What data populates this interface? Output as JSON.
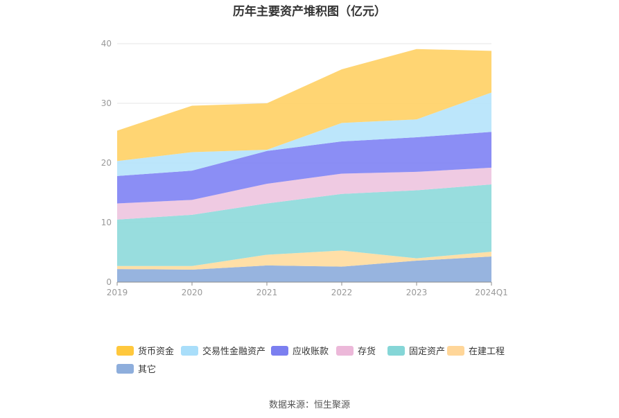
{
  "title": "历年主要资产堆积图（亿元）",
  "source": "数据来源：恒生聚源",
  "chart_data": {
    "type": "area",
    "stacked": true,
    "categories": [
      "2019",
      "2020",
      "2021",
      "2022",
      "2023",
      "2024Q1"
    ],
    "ylim": [
      0,
      40
    ],
    "yticks": [
      "0",
      "10",
      "20",
      "30",
      "40"
    ],
    "grid": true,
    "legend_position": "bottom",
    "series": [
      {
        "name": "其它",
        "color": "#8eaedc",
        "values": [
          2.2,
          2.1,
          2.8,
          2.6,
          3.6,
          4.3
        ]
      },
      {
        "name": "在建工程",
        "color": "#ffdca0",
        "values": [
          0.5,
          0.6,
          1.8,
          2.7,
          0.4,
          0.8
        ]
      },
      {
        "name": "固定资产",
        "color": "#8fdadb",
        "values": [
          7.8,
          8.6,
          8.6,
          9.5,
          11.4,
          11.3
        ]
      },
      {
        "name": "存货",
        "color": "#eec6e0",
        "values": [
          2.7,
          2.5,
          3.3,
          3.4,
          3.1,
          2.8
        ]
      },
      {
        "name": "应收账款",
        "color": "#8184f4",
        "values": [
          4.6,
          4.9,
          5.5,
          5.4,
          5.8,
          6.0
        ]
      },
      {
        "name": "交易性金融资产",
        "color": "#b6e4fb",
        "values": [
          2.5,
          3.1,
          0.2,
          3.1,
          3.0,
          6.6
        ]
      },
      {
        "name": "货币资金",
        "color": "#ffd167",
        "values": [
          5.1,
          7.8,
          7.8,
          9.0,
          11.8,
          7.0
        ]
      }
    ],
    "legend": [
      {
        "name": "货币资金",
        "color": "#ffc83d"
      },
      {
        "name": "交易性金融资产",
        "color": "#a9defa"
      },
      {
        "name": "应收账款",
        "color": "#7b7ff0"
      },
      {
        "name": "存货",
        "color": "#ecb8d9"
      },
      {
        "name": "固定资产",
        "color": "#85d6d7"
      },
      {
        "name": "在建工程",
        "color": "#ffd699"
      },
      {
        "name": "其它",
        "color": "#8eaedc"
      }
    ]
  }
}
